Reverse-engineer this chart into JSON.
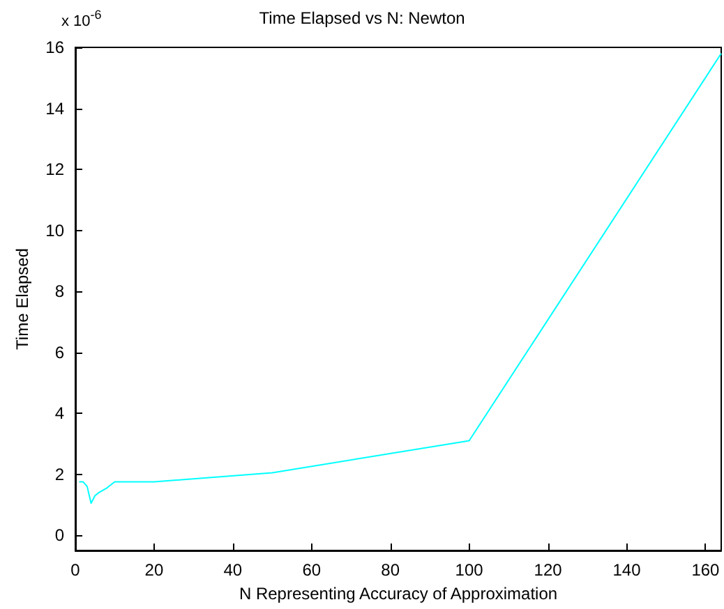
{
  "chart_data": {
    "type": "line",
    "title": "Time Elapsed vs N: Newton",
    "xlabel": "N Representing Accuracy of Approximation",
    "ylabel": "Time Elapsed",
    "annotations": [
      "x 10$^{-6}$"
    ],
    "series": [
      {
        "color": "#00ffff",
        "x": [
          1,
          2,
          3,
          4,
          5,
          6,
          8,
          10,
          20,
          50,
          100,
          164
        ],
        "values": [
          1.75,
          1.75,
          1.6,
          1.05,
          1.3,
          1.4,
          1.55,
          1.75,
          1.75,
          2.05,
          3.1,
          15.8
        ]
      }
    ],
    "xlim": [
      0,
      164
    ],
    "xticks": [
      0,
      20,
      40,
      60,
      80,
      100,
      120,
      140,
      160
    ],
    "ylim": [
      -0.5,
      16
    ],
    "yticks": [
      0,
      2,
      4,
      6,
      8,
      10,
      12,
      14,
      16
    ],
    "grid": false,
    "marker": "none",
    "line_style": "solid"
  }
}
